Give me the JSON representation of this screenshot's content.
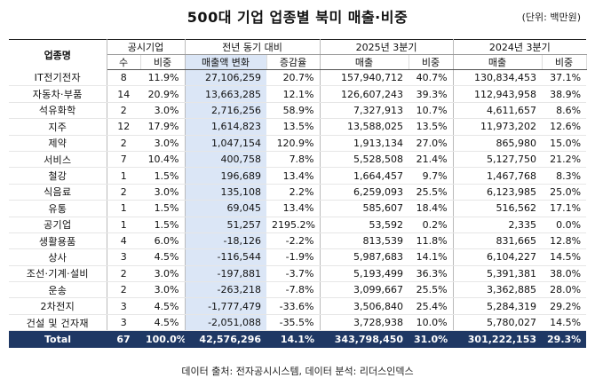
{
  "title": "500대 기업 업종별 북미 매출·비중",
  "unit": "(단위: 백만원)",
  "header": {
    "industry": "업종명",
    "group_listed": "공시기업",
    "group_yoy": "전년 동기 대비",
    "group_2025": "2025년 3분기",
    "group_2024": "2024년 3분기",
    "sub_count": "수",
    "sub_share": "비중",
    "sub_change": "매출액 변화",
    "sub_rate": "증감율",
    "sub_sales": "매출",
    "sub_share2": "비중",
    "sub_sales2": "매출",
    "sub_share3": "비중"
  },
  "rows": [
    {
      "name": "IT전기전자",
      "count": "8",
      "share": "11.9%",
      "change": "27,106,259",
      "rate": "20.7%",
      "sales25": "157,940,712",
      "share25": "40.7%",
      "sales24": "130,834,453",
      "share24": "37.1%"
    },
    {
      "name": "자동차·부품",
      "count": "14",
      "share": "20.9%",
      "change": "13,663,285",
      "rate": "12.1%",
      "sales25": "126,607,243",
      "share25": "39.3%",
      "sales24": "112,943,958",
      "share24": "38.9%"
    },
    {
      "name": "석유화학",
      "count": "2",
      "share": "3.0%",
      "change": "2,716,256",
      "rate": "58.9%",
      "sales25": "7,327,913",
      "share25": "10.7%",
      "sales24": "4,611,657",
      "share24": "8.6%"
    },
    {
      "name": "지주",
      "count": "12",
      "share": "17.9%",
      "change": "1,614,823",
      "rate": "13.5%",
      "sales25": "13,588,025",
      "share25": "13.5%",
      "sales24": "11,973,202",
      "share24": "12.6%"
    },
    {
      "name": "제약",
      "count": "2",
      "share": "3.0%",
      "change": "1,047,154",
      "rate": "120.9%",
      "sales25": "1,913,134",
      "share25": "27.0%",
      "sales24": "865,980",
      "share24": "15.0%"
    },
    {
      "name": "서비스",
      "count": "7",
      "share": "10.4%",
      "change": "400,758",
      "rate": "7.8%",
      "sales25": "5,528,508",
      "share25": "21.4%",
      "sales24": "5,127,750",
      "share24": "21.2%"
    },
    {
      "name": "철강",
      "count": "1",
      "share": "1.5%",
      "change": "196,689",
      "rate": "13.4%",
      "sales25": "1,664,457",
      "share25": "9.7%",
      "sales24": "1,467,768",
      "share24": "8.3%"
    },
    {
      "name": "식음료",
      "count": "2",
      "share": "3.0%",
      "change": "135,108",
      "rate": "2.2%",
      "sales25": "6,259,093",
      "share25": "25.5%",
      "sales24": "6,123,985",
      "share24": "25.0%"
    },
    {
      "name": "유통",
      "count": "1",
      "share": "1.5%",
      "change": "69,045",
      "rate": "13.4%",
      "sales25": "585,607",
      "share25": "18.4%",
      "sales24": "516,562",
      "share24": "17.1%"
    },
    {
      "name": "공기업",
      "count": "1",
      "share": "1.5%",
      "change": "51,257",
      "rate": "2195.2%",
      "sales25": "53,592",
      "share25": "0.2%",
      "sales24": "2,335",
      "share24": "0.0%"
    },
    {
      "name": "생활용품",
      "count": "4",
      "share": "6.0%",
      "change": "-18,126",
      "rate": "-2.2%",
      "sales25": "813,539",
      "share25": "11.8%",
      "sales24": "831,665",
      "share24": "12.8%"
    },
    {
      "name": "상사",
      "count": "3",
      "share": "4.5%",
      "change": "-116,544",
      "rate": "-1.9%",
      "sales25": "5,987,683",
      "share25": "14.1%",
      "sales24": "6,104,227",
      "share24": "14.5%"
    },
    {
      "name": "조선·기계·설비",
      "count": "2",
      "share": "3.0%",
      "change": "-197,881",
      "rate": "-3.7%",
      "sales25": "5,193,499",
      "share25": "36.3%",
      "sales24": "5,391,381",
      "share24": "38.0%"
    },
    {
      "name": "운송",
      "count": "2",
      "share": "3.0%",
      "change": "-263,218",
      "rate": "-7.8%",
      "sales25": "3,099,667",
      "share25": "25.5%",
      "sales24": "3,362,885",
      "share24": "28.0%"
    },
    {
      "name": "2차전지",
      "count": "3",
      "share": "4.5%",
      "change": "-1,777,479",
      "rate": "-33.6%",
      "sales25": "3,506,840",
      "share25": "25.4%",
      "sales24": "5,284,319",
      "share24": "29.2%"
    },
    {
      "name": "건설 및 건자재",
      "count": "3",
      "share": "4.5%",
      "change": "-2,051,088",
      "rate": "-35.5%",
      "sales25": "3,728,938",
      "share25": "10.0%",
      "sales24": "5,780,027",
      "share24": "14.5%"
    }
  ],
  "total": {
    "name": "Total",
    "count": "67",
    "share": "100.0%",
    "change": "42,576,296",
    "rate": "14.1%",
    "sales25": "343,798,450",
    "share25": "31.0%",
    "sales24": "301,222,153",
    "share24": "29.3%"
  },
  "footer": "데이터 출처: 전자공시시스템, 데이터 분석: 리더스인덱스",
  "colors": {
    "highlight": "#dbe6f6",
    "total_bg": "#1f3864"
  }
}
